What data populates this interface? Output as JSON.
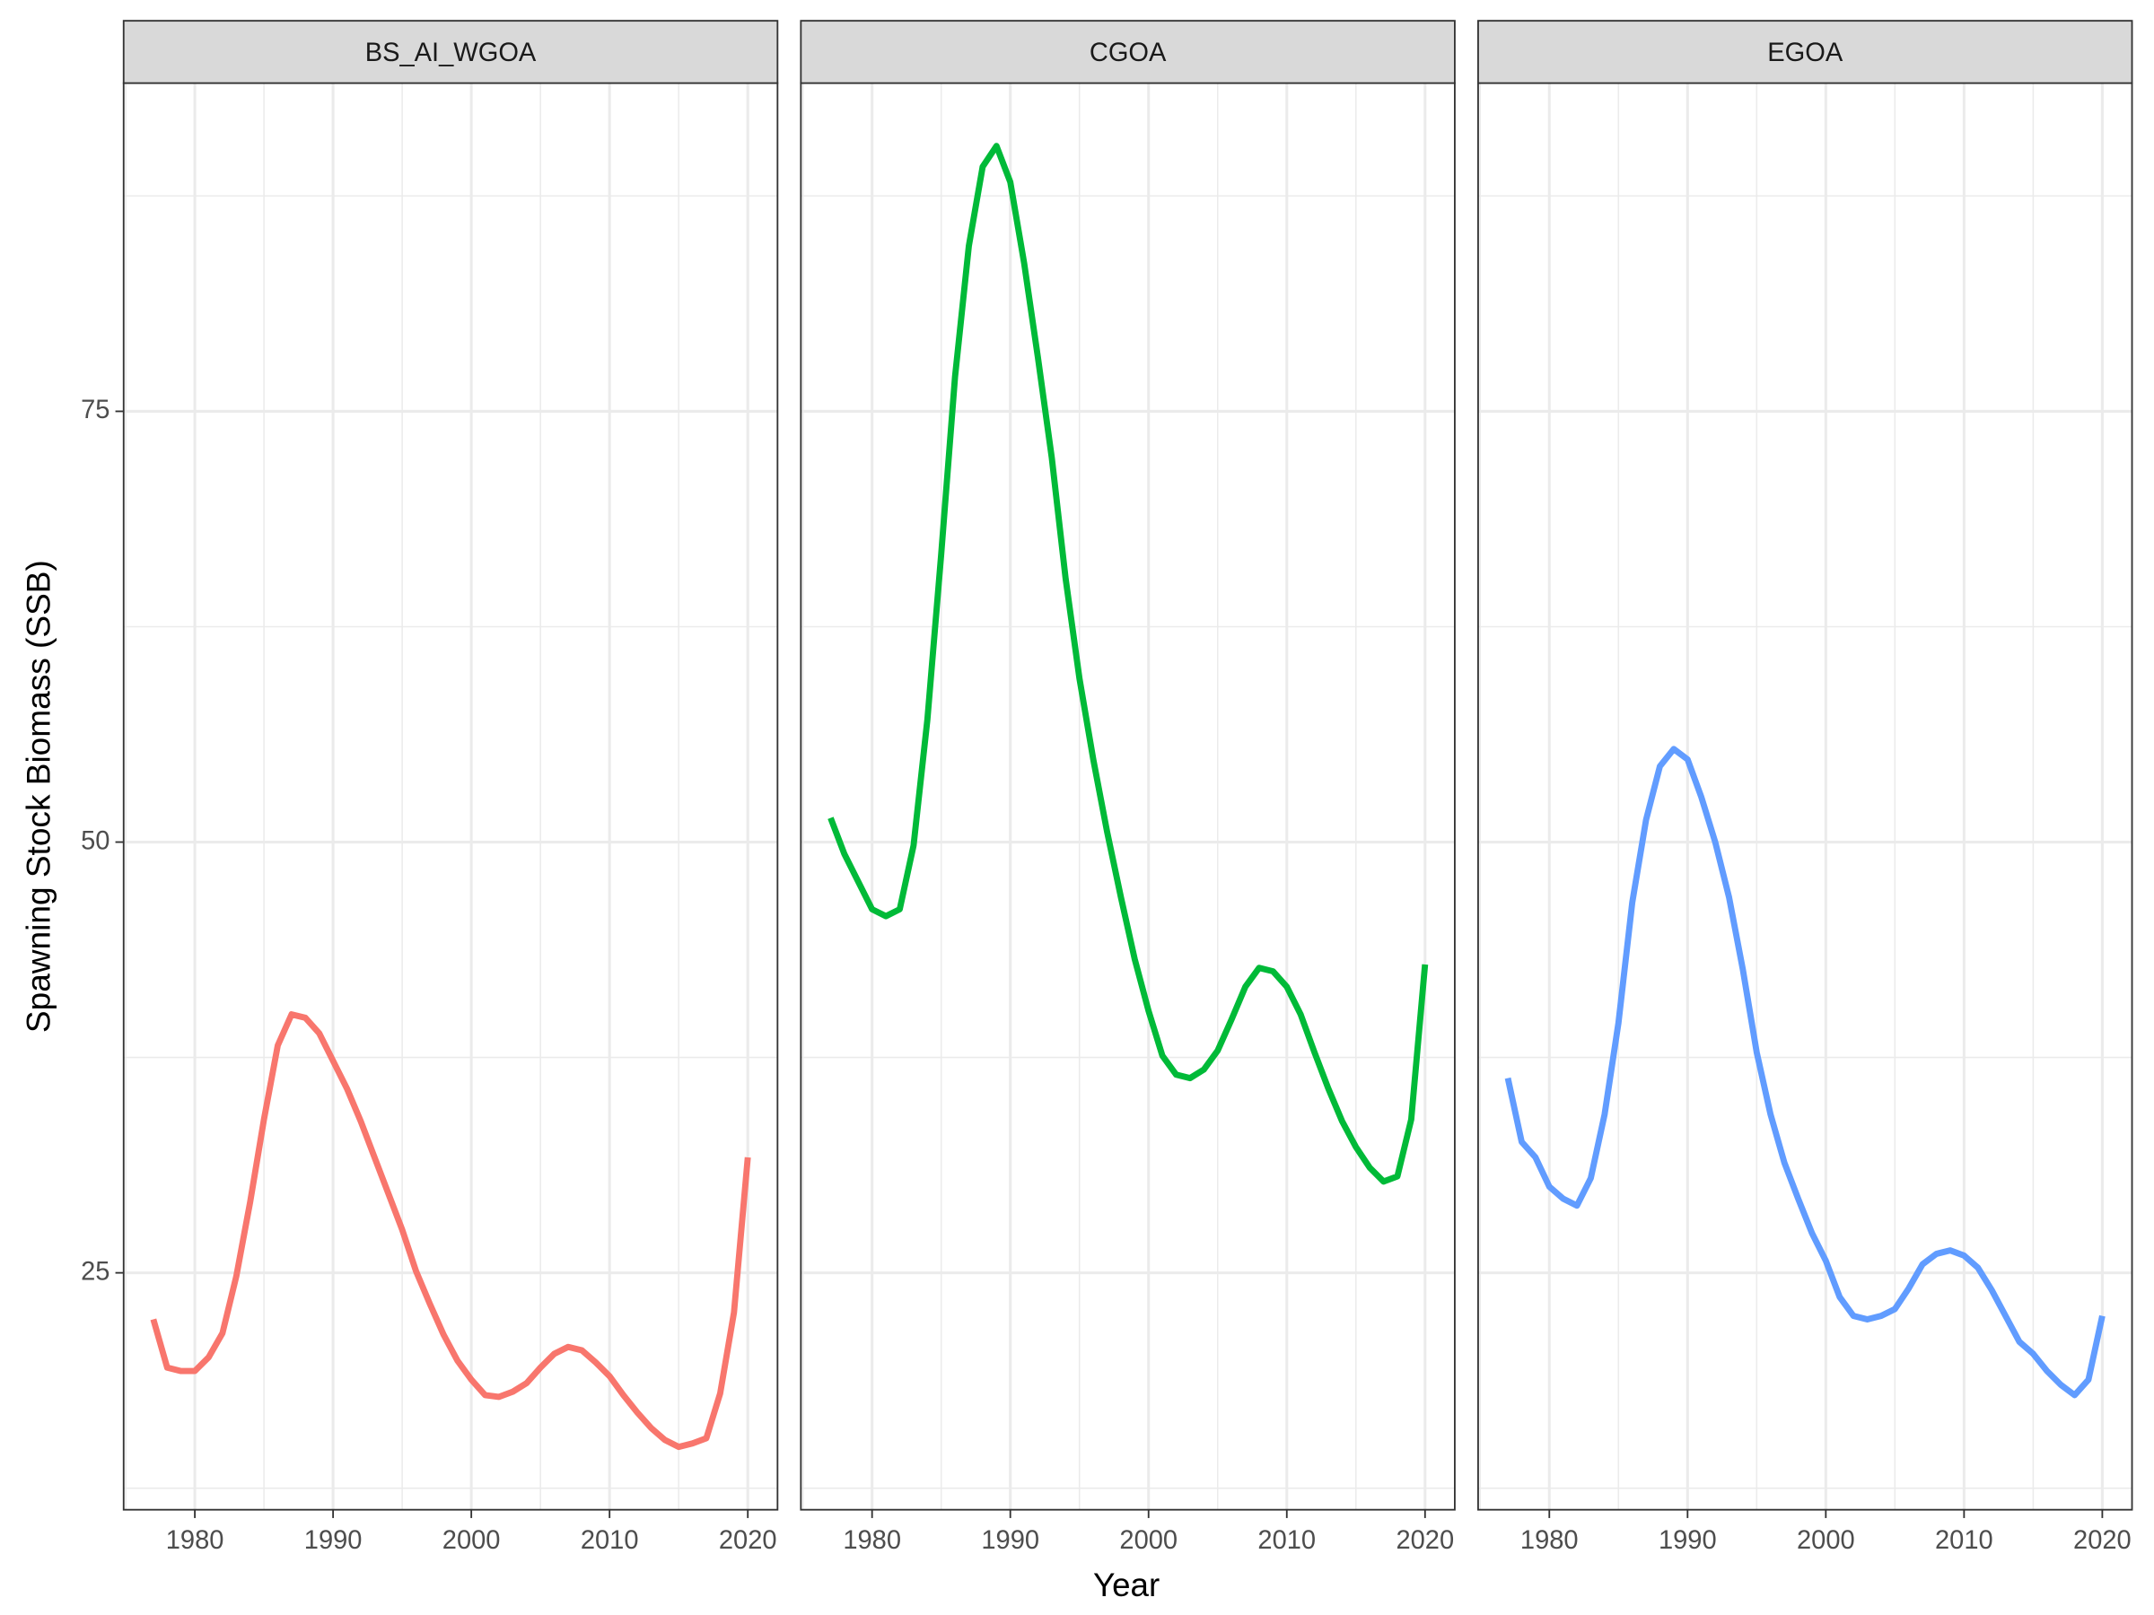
{
  "chart_data": {
    "type": "line",
    "x_label": "Year",
    "y_label": "Spawning Stock Biomass (SSB)",
    "x": [
      1977,
      1978,
      1979,
      1980,
      1981,
      1982,
      1983,
      1984,
      1985,
      1986,
      1987,
      1988,
      1989,
      1990,
      1991,
      1992,
      1993,
      1994,
      1995,
      1996,
      1997,
      1998,
      1999,
      2000,
      2001,
      2002,
      2003,
      2004,
      2005,
      2006,
      2007,
      2008,
      2009,
      2010,
      2011,
      2012,
      2013,
      2014,
      2015,
      2016,
      2017,
      2018,
      2019,
      2020
    ],
    "xlim": [
      1974.85,
      2022.15
    ],
    "xticks": [
      1980,
      1990,
      2000,
      2010,
      2020
    ],
    "xminor": [
      1975,
      1985,
      1995,
      2005,
      2015
    ],
    "ylim": [
      11.25,
      94.05
    ],
    "yticks": [
      25,
      50,
      75
    ],
    "yminor": [
      12.5,
      37.5,
      62.5,
      87.5
    ],
    "grid": true,
    "series": [
      {
        "name": "BS_AI_WGOA",
        "color": "#F8766D",
        "values": [
          22.3,
          19.5,
          19.3,
          19.3,
          20.1,
          21.5,
          24.8,
          29.1,
          33.9,
          38.2,
          40.0,
          39.8,
          38.9,
          37.3,
          35.7,
          33.8,
          31.7,
          29.6,
          27.5,
          25.1,
          23.2,
          21.4,
          19.9,
          18.8,
          17.9,
          17.8,
          18.1,
          18.6,
          19.5,
          20.3,
          20.7,
          20.5,
          19.8,
          19.0,
          17.9,
          16.9,
          16.0,
          15.3,
          14.9,
          15.1,
          15.4,
          18.0,
          22.7,
          31.7
        ]
      },
      {
        "name": "CGOA",
        "color": "#00BA38",
        "values": [
          51.4,
          49.3,
          47.7,
          46.1,
          45.7,
          46.1,
          49.8,
          57.1,
          66.7,
          77.0,
          84.6,
          89.2,
          90.4,
          88.3,
          83.6,
          78.1,
          72.3,
          65.3,
          59.5,
          54.8,
          50.6,
          46.8,
          43.2,
          40.2,
          37.6,
          36.5,
          36.3,
          36.8,
          37.9,
          39.7,
          41.6,
          42.7,
          42.5,
          41.6,
          40.0,
          37.8,
          35.7,
          33.8,
          32.3,
          31.1,
          30.3,
          30.6,
          33.9,
          42.9
        ]
      },
      {
        "name": "EGOA",
        "color": "#619CFF",
        "values": [
          36.3,
          32.6,
          31.7,
          30.0,
          29.3,
          28.9,
          30.5,
          34.2,
          39.5,
          46.5,
          51.3,
          54.4,
          55.4,
          54.8,
          52.6,
          50.0,
          46.8,
          42.6,
          37.8,
          34.2,
          31.4,
          29.3,
          27.3,
          25.7,
          23.6,
          22.5,
          22.3,
          22.5,
          22.9,
          24.1,
          25.5,
          26.1,
          26.3,
          26.0,
          25.3,
          24.0,
          22.5,
          21.0,
          20.3,
          19.3,
          18.5,
          17.9,
          18.8,
          22.5
        ]
      }
    ]
  }
}
